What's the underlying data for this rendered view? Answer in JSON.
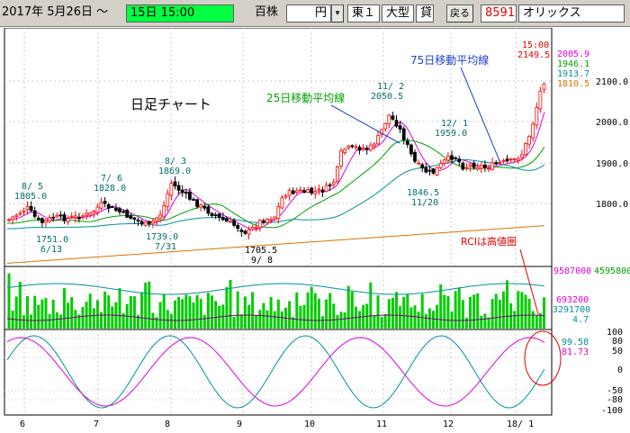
{
  "toolbar": {
    "date_range": "2017年 5月26日 ～",
    "end_time": "15日 15:00",
    "unit_value": "百株",
    "currency": "円",
    "market": "東１",
    "category": "大型",
    "loan": "貸",
    "back_label": "戻る",
    "code": "8591",
    "company": "オリックス"
  },
  "chart_title": "日足チャート",
  "annotations": {
    "ma25": "25日移動平均線",
    "ma75": "75日移動平均線",
    "rci_note": "RCIは高値圏",
    "time": "15:00",
    "last_price": "2149.5"
  },
  "price_labels": [
    {
      "text": "8/ 5",
      "color": "#007070"
    },
    {
      "text": "1805.0",
      "color": "#007070"
    },
    {
      "text": "7/ 6",
      "color": "#007070"
    },
    {
      "text": "1828.0",
      "color": "#007070"
    },
    {
      "text": "8/ 3",
      "color": "#007070"
    },
    {
      "text": "1869.0",
      "color": "#007070"
    },
    {
      "text": "11/ 2",
      "color": "#007070"
    },
    {
      "text": "2050.5",
      "color": "#007070"
    },
    {
      "text": "12/ 1",
      "color": "#007070"
    },
    {
      "text": "1959.0",
      "color": "#007070"
    },
    {
      "text": "1751.0",
      "color": "#007070"
    },
    {
      "text": "6/13",
      "color": "#007070"
    },
    {
      "text": "1739.0",
      "color": "#007070"
    },
    {
      "text": "7/31",
      "color": "#007070"
    },
    {
      "text": "1705.5",
      "color": "#000000"
    },
    {
      "text": "9/ 8",
      "color": "#000000"
    },
    {
      "text": "1846.5",
      "color": "#007070"
    },
    {
      "text": "11/20",
      "color": "#007070"
    }
  ],
  "ma_values": [
    {
      "text": "2005.9",
      "color": "#e000e0"
    },
    {
      "text": "1946.1",
      "color": "#00a000"
    },
    {
      "text": "1913.7",
      "color": "#0090a0"
    },
    {
      "text": "1810.5",
      "color": "#e07000"
    }
  ],
  "price_axis": [
    "2100.0",
    "2000.0",
    "1900.0",
    "1800.0"
  ],
  "volume": {
    "max_label": "9587000",
    "max_label2": "4595800",
    "last": "693200",
    "avg": "3291700",
    "ratio": "4.7"
  },
  "rci": {
    "axis": [
      "100",
      "80",
      "50",
      "0",
      "-50",
      "-80",
      "-100"
    ],
    "val1": "99.58",
    "val2": "81.73"
  },
  "month_labels": [
    "6",
    "7",
    "8",
    "9",
    "10",
    "11",
    "12",
    "18/ 1"
  ],
  "colors": {
    "up_candle": "#ff0000",
    "down_candle": "#000000",
    "ma_short": "#e000e0",
    "ma25": "#00a000",
    "ma75": "#0090a0",
    "ma_long": "#e07000",
    "volume": "#00cc00",
    "grid": "#c8c8c8",
    "annotation_blue": "#2040d0",
    "annotation_red": "#e00000"
  }
}
